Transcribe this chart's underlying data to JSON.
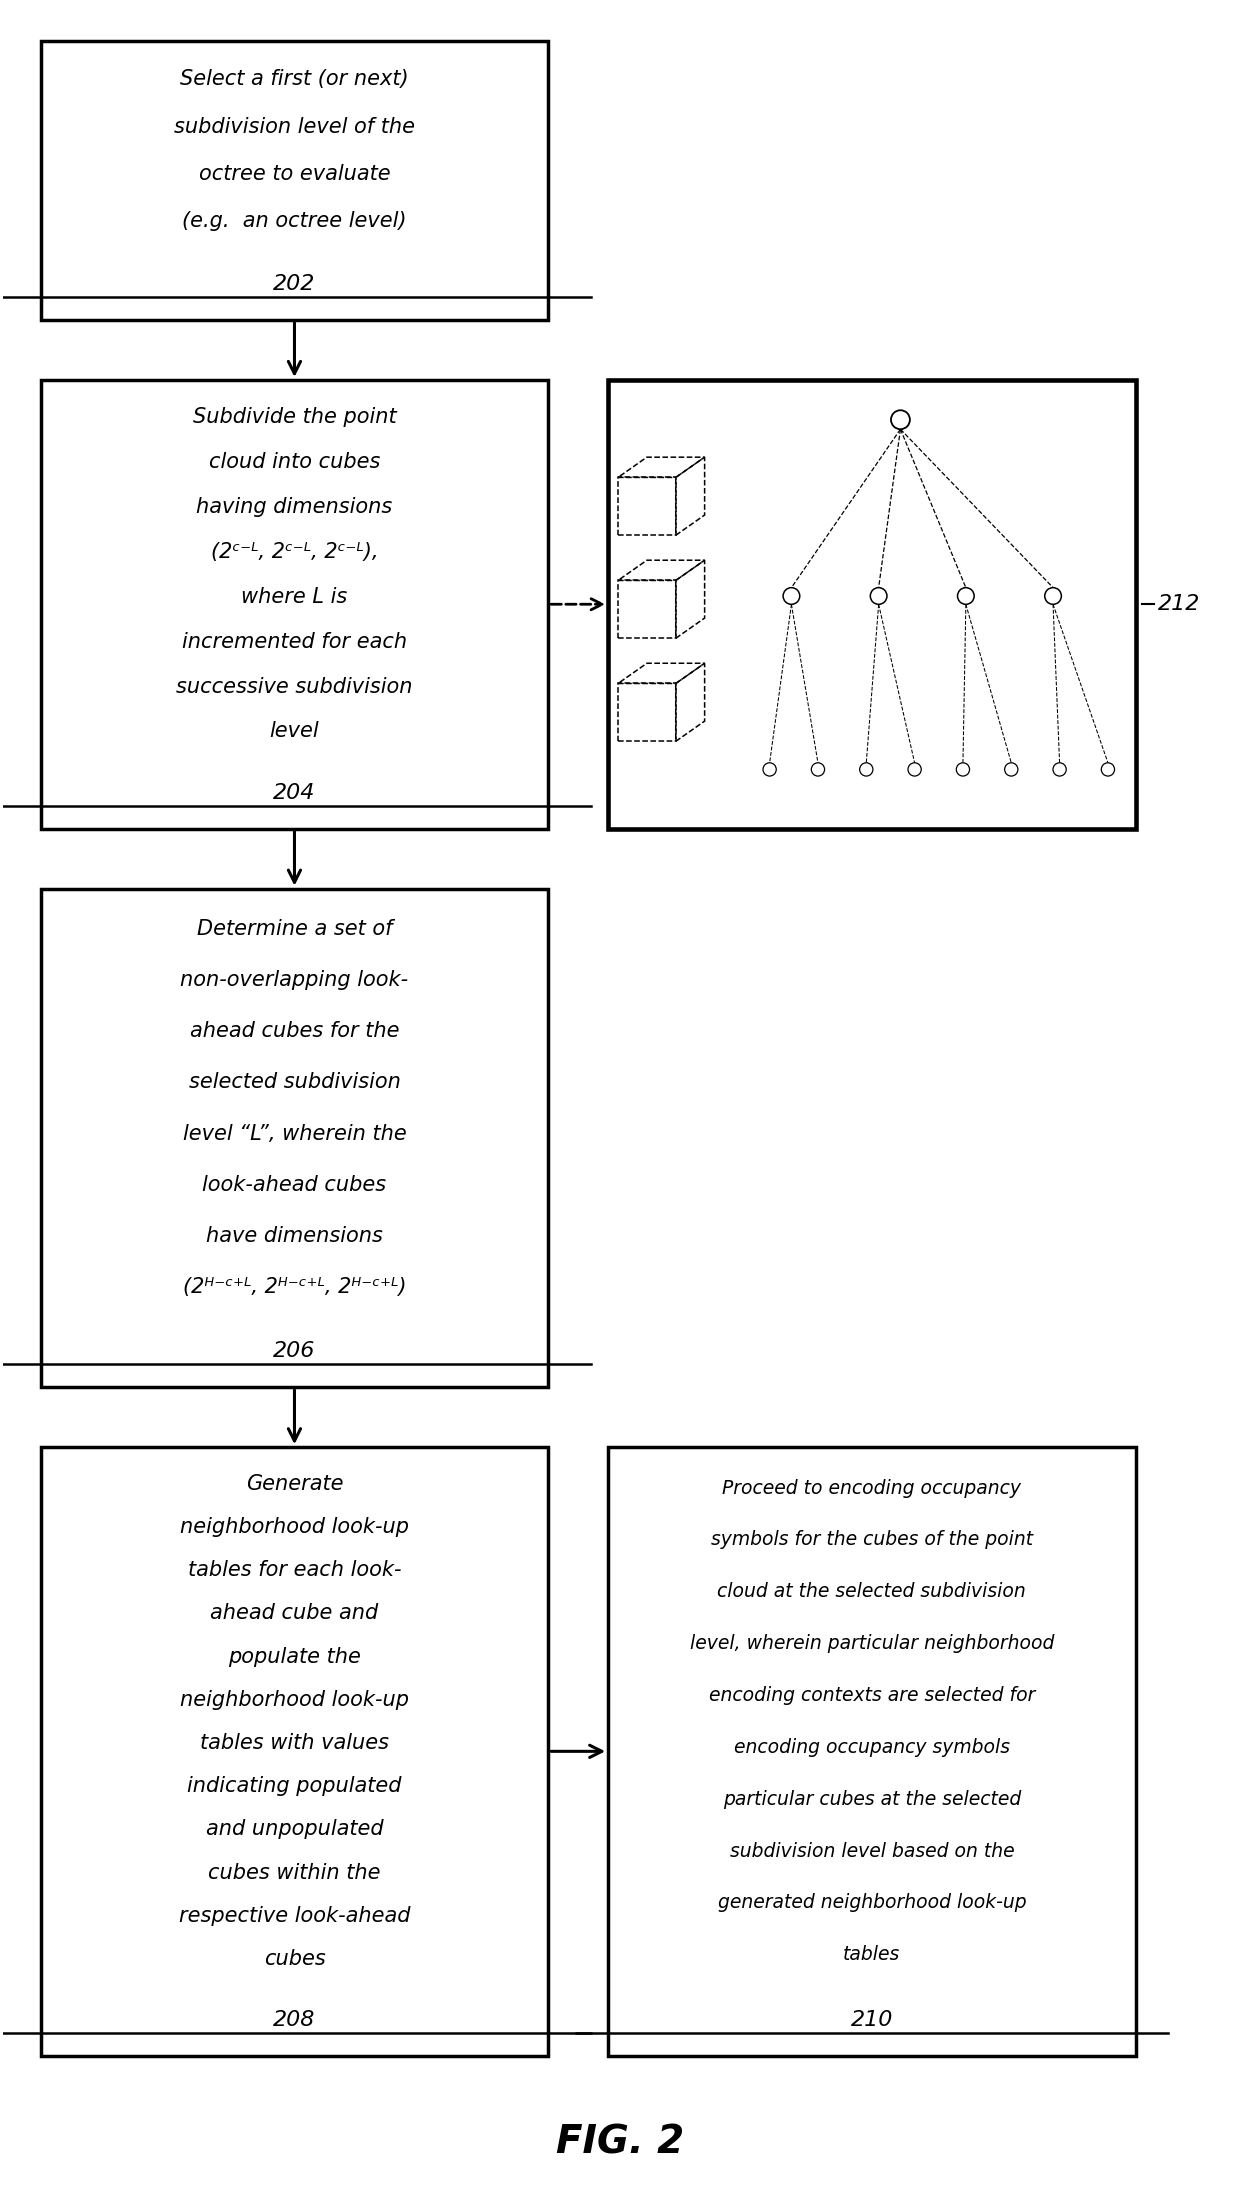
{
  "bg_color": "#ffffff",
  "lw": 2.5,
  "fig_w": 12.4,
  "fig_h": 21.92,
  "box202": {
    "label": "202",
    "lines": [
      "Select a first (or next)",
      "subdivision level of the",
      "octree to evaluate",
      "(e.g.  an octree level)"
    ]
  },
  "box204": {
    "label": "204",
    "lines": [
      "Subdivide the point",
      "cloud into cubes",
      "having dimensions",
      "(2ᶜ⁻ᴸ, 2ᶜ⁻ᴸ, 2ᶜ⁻ᴸ),",
      "where L is",
      "incremented for each",
      "successive subdivision",
      "level"
    ]
  },
  "box206": {
    "label": "206",
    "lines": [
      "Determine a set of",
      "non-overlapping look-",
      "ahead cubes for the",
      "selected subdivision",
      "level “L”, wherein the",
      "look-ahead cubes",
      "have dimensions",
      "(2ᴴ⁻ᶜ⁺ᴸ, 2ᴴ⁻ᶜ⁺ᴸ, 2ᴴ⁻ᶜ⁺ᴸ)"
    ]
  },
  "box208": {
    "label": "208",
    "lines": [
      "Generate",
      "neighborhood look-up",
      "tables for each look-",
      "ahead cube and",
      "populate the",
      "neighborhood look-up",
      "tables with values",
      "indicating populated",
      "and unpopulated",
      "cubes within the",
      "respective look-ahead",
      "cubes"
    ]
  },
  "box210": {
    "label": "210",
    "lines": [
      "Proceed to encoding occupancy",
      "symbols for the cubes of the point",
      "cloud at the selected subdivision",
      "level, wherein particular neighborhood",
      "encoding contexts are selected for",
      "encoding occupancy symbols",
      "particular cubes at the selected",
      "subdivision level based on the",
      "generated neighborhood look-up",
      "tables"
    ]
  },
  "label212": "212",
  "fig_label": "FIG. 2"
}
